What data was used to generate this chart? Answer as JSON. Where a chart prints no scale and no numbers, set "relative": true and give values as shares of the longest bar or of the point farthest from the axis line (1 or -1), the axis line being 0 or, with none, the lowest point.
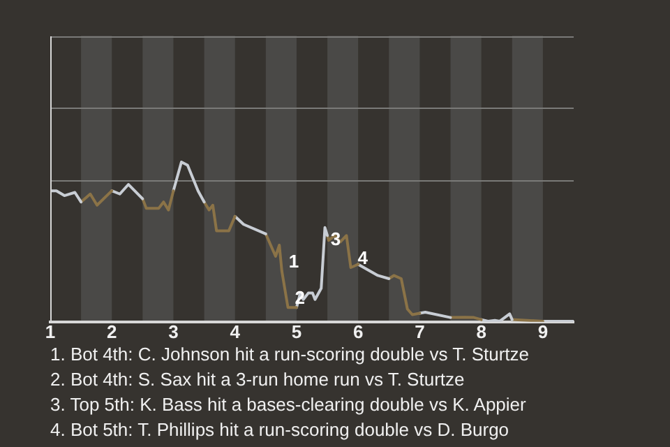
{
  "chart_data": {
    "type": "line",
    "relative": true,
    "legend": false,
    "ref_lines": [
      {
        "axis": "y",
        "value": 0.89,
        "color": "#7a7a78"
      }
    ],
    "marker": "none",
    "xlim": [
      1,
      9.5
    ],
    "xticks": [
      1,
      2,
      3,
      4,
      5,
      6,
      7,
      8,
      9
    ],
    "bands": [
      {
        "axis": "x",
        "from": 1.5,
        "to": 2,
        "color": "#4a4947"
      },
      {
        "axis": "x",
        "from": 2.5,
        "to": 3,
        "color": "#4a4947"
      },
      {
        "axis": "x",
        "from": 3.5,
        "to": 4,
        "color": "#4a4947"
      },
      {
        "axis": "x",
        "from": 4.5,
        "to": 5,
        "color": "#4a4947"
      },
      {
        "axis": "x",
        "from": 5.5,
        "to": 6,
        "color": "#4a4947"
      },
      {
        "axis": "x",
        "from": 6.5,
        "to": 7,
        "color": "#4a4947"
      },
      {
        "axis": "x",
        "from": 7.5,
        "to": 8,
        "color": "#4a4947"
      },
      {
        "axis": "x",
        "from": 8.5,
        "to": 9,
        "color": "#4a4947"
      }
    ],
    "series": [
      {
        "color": "#c8cdd4",
        "x": [
          1,
          1.1,
          1.23,
          1.4,
          1.5
        ],
        "values": [
          0.82,
          0.82,
          0.79,
          0.81,
          0.75
        ]
      },
      {
        "color": "#8b7347",
        "x": [
          1.5,
          1.65,
          1.76,
          2
        ],
        "values": [
          0.75,
          0.8,
          0.73,
          0.82
        ]
      },
      {
        "color": "#c8cdd4",
        "x": [
          2,
          2.13,
          2.27,
          2.5
        ],
        "values": [
          0.82,
          0.8,
          0.86,
          0.77
        ]
      },
      {
        "color": "#8b7347",
        "x": [
          2.5,
          2.56,
          2.76,
          2.84,
          2.92,
          3
        ],
        "values": [
          0.77,
          0.71,
          0.71,
          0.75,
          0.7,
          0.82
        ]
      },
      {
        "color": "#c8cdd4",
        "x": [
          3,
          3.13,
          3.23,
          3.4,
          3.5
        ],
        "values": [
          0.82,
          1,
          0.98,
          0.82,
          0.75
        ]
      },
      {
        "color": "#8b7347",
        "x": [
          3.5,
          3.58,
          3.64,
          3.7,
          3.9,
          4
        ],
        "values": [
          0.75,
          0.7,
          0.73,
          0.57,
          0.57,
          0.66
        ]
      },
      {
        "color": "#c8cdd4",
        "x": [
          4,
          4.14,
          4.5
        ],
        "values": [
          0.66,
          0.61,
          0.55
        ]
      },
      {
        "color": "#8b7347",
        "x": [
          4.5,
          4.66,
          4.72,
          4.76,
          4.86,
          5
        ],
        "values": [
          0.55,
          0.41,
          0.48,
          0.32,
          0.09,
          0.09
        ]
      },
      {
        "color": "#c8cdd4",
        "x": [
          5,
          5.06,
          5.11,
          5.19,
          5.26,
          5.3,
          5.4,
          5.44,
          5.46,
          5.5
        ],
        "values": [
          0.09,
          0.18,
          0.14,
          0.18,
          0.18,
          0.14,
          0.21,
          0.46,
          0.59,
          0.54
        ]
      },
      {
        "color": "#8b7347",
        "x": [
          5.5,
          5.52,
          5.62,
          5.71,
          5.81,
          5.88,
          6
        ],
        "values": [
          0.54,
          0.51,
          0.54,
          0.5,
          0.54,
          0.34,
          0.36
        ]
      },
      {
        "color": "#c8cdd4",
        "x": [
          6,
          6.32,
          6.5
        ],
        "values": [
          0.36,
          0.29,
          0.27
        ]
      },
      {
        "color": "#8b7347",
        "x": [
          6.5,
          6.58,
          6.7,
          6.8,
          6.88,
          7
        ],
        "values": [
          0.27,
          0.29,
          0.27,
          0.08,
          0.045,
          0.054
        ]
      },
      {
        "color": "#c8cdd4",
        "x": [
          7,
          7.09,
          7.5
        ],
        "values": [
          0.054,
          0.06,
          0.027
        ]
      },
      {
        "color": "#8b7347",
        "x": [
          7.5,
          7.73,
          7.88,
          8
        ],
        "values": [
          0.027,
          0.029,
          0.027,
          0.014
        ]
      },
      {
        "color": "#c8cdd4",
        "x": [
          8,
          8.11,
          8.22,
          8.3,
          8.46,
          8.5
        ],
        "values": [
          0.014,
          0.004,
          0.009,
          0.004,
          0.05,
          0.014
        ]
      },
      {
        "color": "#8b7347",
        "x": [
          8.5,
          9
        ],
        "values": [
          0.014,
          0.004
        ]
      },
      {
        "color": "#c8cdd4",
        "x": [
          9,
          9.5
        ],
        "values": [
          0.004,
          0.004
        ]
      }
    ],
    "annotations": [
      {
        "text": "1",
        "x": 4.76,
        "y": 0.32
      },
      {
        "text": "2",
        "x": 4.86,
        "y": 0.09
      },
      {
        "text": "3",
        "x": 5.44,
        "y": 0.46
      },
      {
        "text": "4",
        "x": 5.88,
        "y": 0.34
      },
      "1. Bot 4th: C. Johnson hit a run-scoring double vs T. Sturtze",
      "2. Bot 4th: S. Sax hit a 3-run home run vs T. Sturtze",
      "3. Top 5th: K. Bass hit a bases-clearing double vs K. Appier",
      "4. Bot 5th: T. Phillips hit a run-scoring double vs D. Burgo"
    ]
  }
}
